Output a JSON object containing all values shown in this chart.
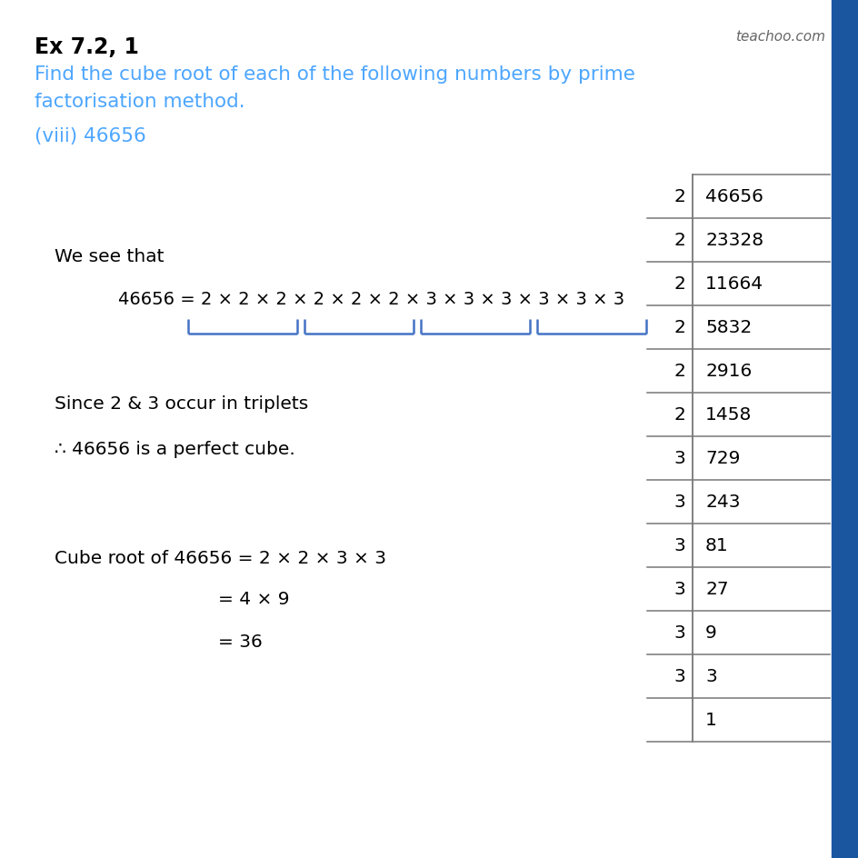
{
  "title": "Ex 7.2, 1",
  "subtitle1": "Find the cube root of each of the following numbers by prime",
  "subtitle2": "factorisation method.",
  "part": "(viii) 46656",
  "watermark": "teachoo.com",
  "bg_color": "#ffffff",
  "title_color": "#000000",
  "subtitle_color": "#4da6ff",
  "part_color": "#4da6ff",
  "text_color": "#000000",
  "bracket_color": "#4472c4",
  "table_divisors": [
    "2",
    "2",
    "2",
    "2",
    "2",
    "2",
    "3",
    "3",
    "3",
    "3",
    "3",
    "3",
    ""
  ],
  "table_dividends": [
    "46656",
    "23328",
    "11664",
    "5832",
    "2916",
    "1458",
    "729",
    "243",
    "81",
    "27",
    "9",
    "3",
    "1"
  ],
  "we_see_that": "We see that",
  "factorisation_line": "46656 = 2 × 2 × 2 × 2 × 2 × 2 × 3 × 3 × 3 × 3 × 3 × 3",
  "triplet_text": "Since 2 & 3 occur in triplets",
  "perfect_cube_text": "∴ 46656 is a perfect cube.",
  "cube_root_line1": "Cube root of 46656 = 2 × 2 × 3 × 3",
  "cube_root_line2": "= 4 × 9",
  "cube_root_line3": "= 36",
  "sidebar_color": "#1a56a0"
}
